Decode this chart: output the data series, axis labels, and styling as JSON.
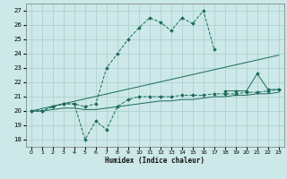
{
  "background_color": "#cce8e8",
  "grid_color": "#aacccc",
  "line_color": "#1a6b5a",
  "xlabel": "Humidex (Indice chaleur)",
  "xlim": [
    -0.5,
    23.5
  ],
  "ylim": [
    17.5,
    27.5
  ],
  "yticks": [
    18,
    19,
    20,
    21,
    22,
    23,
    24,
    25,
    26,
    27
  ],
  "xticks": [
    0,
    1,
    2,
    3,
    4,
    5,
    6,
    7,
    8,
    9,
    10,
    11,
    12,
    13,
    14,
    15,
    16,
    17,
    18,
    19,
    20,
    21,
    22,
    23
  ],
  "series": [
    {
      "x": [
        0,
        1,
        2,
        3,
        4,
        5,
        6,
        7,
        8,
        9,
        10,
        11,
        12,
        13,
        14,
        15,
        16,
        17
      ],
      "y": [
        20.0,
        20.0,
        20.3,
        20.5,
        20.5,
        20.3,
        20.5,
        23.0,
        24.0,
        25.0,
        25.8,
        26.5,
        26.2,
        25.6,
        26.5,
        26.1,
        27.0,
        24.3
      ],
      "style": "dashed",
      "marker": true
    },
    {
      "x": [
        0,
        1,
        2,
        3,
        4,
        5,
        6,
        7,
        8,
        9,
        10,
        11,
        12,
        13,
        14,
        15,
        16,
        17,
        18,
        19,
        20,
        21,
        22,
        23
      ],
      "y": [
        20.0,
        20.0,
        20.3,
        20.5,
        20.5,
        18.0,
        19.3,
        18.7,
        20.3,
        20.8,
        21.0,
        21.0,
        21.0,
        21.0,
        21.1,
        21.1,
        21.1,
        21.2,
        21.2,
        21.2,
        21.3,
        21.3,
        21.4,
        21.5
      ],
      "style": "dashed",
      "marker": true
    },
    {
      "x": [
        0,
        23
      ],
      "y": [
        20.0,
        23.9
      ],
      "style": "solid",
      "marker": false
    },
    {
      "x": [
        18,
        19,
        20,
        21,
        22,
        23
      ],
      "y": [
        21.4,
        21.4,
        21.4,
        22.6,
        21.5,
        21.5
      ],
      "style": "solid",
      "marker": true
    },
    {
      "x": [
        0,
        1,
        2,
        3,
        4,
        5,
        6,
        7,
        8,
        9,
        10,
        11,
        12,
        13,
        14,
        15,
        16,
        17,
        18,
        19,
        20,
        21,
        22,
        23
      ],
      "y": [
        20.0,
        20.0,
        20.1,
        20.2,
        20.2,
        20.1,
        20.1,
        20.2,
        20.3,
        20.4,
        20.5,
        20.6,
        20.7,
        20.7,
        20.8,
        20.8,
        20.9,
        21.0,
        21.0,
        21.1,
        21.1,
        21.2,
        21.2,
        21.3
      ],
      "style": "solid",
      "marker": false
    }
  ]
}
